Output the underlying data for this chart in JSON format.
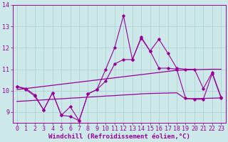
{
  "xlabel": "Windchill (Refroidissement éolien,°C)",
  "x": [
    0,
    1,
    2,
    3,
    4,
    5,
    6,
    7,
    8,
    9,
    10,
    11,
    12,
    13,
    14,
    15,
    16,
    17,
    18,
    19,
    20,
    21,
    22,
    23
  ],
  "line1": [
    10.2,
    10.1,
    9.8,
    9.1,
    9.9,
    8.85,
    8.8,
    8.6,
    9.85,
    10.05,
    11.0,
    12.0,
    13.5,
    11.45,
    12.5,
    11.85,
    12.4,
    11.75,
    11.05,
    11.0,
    11.0,
    10.1,
    10.85,
    9.7
  ],
  "line2": [
    10.2,
    10.05,
    9.75,
    9.1,
    9.9,
    8.85,
    9.25,
    8.6,
    9.85,
    10.05,
    10.45,
    11.25,
    11.45,
    11.45,
    12.45,
    11.85,
    11.05,
    11.05,
    11.0,
    9.65,
    9.6,
    9.6,
    10.8,
    9.65
  ],
  "line3": [
    10.05,
    10.1,
    10.15,
    10.2,
    10.25,
    10.3,
    10.35,
    10.4,
    10.45,
    10.5,
    10.55,
    10.6,
    10.65,
    10.7,
    10.75,
    10.8,
    10.85,
    10.9,
    10.95,
    10.97,
    10.98,
    10.99,
    11.0,
    11.0
  ],
  "line4": [
    9.5,
    9.52,
    9.55,
    9.57,
    9.6,
    9.62,
    9.65,
    9.67,
    9.7,
    9.72,
    9.75,
    9.77,
    9.8,
    9.82,
    9.85,
    9.87,
    9.88,
    9.89,
    9.9,
    9.62,
    9.63,
    9.64,
    9.65,
    9.66
  ],
  "line_color": "#990099",
  "bg_color": "#cce8e8",
  "grid_color": "#aacece",
  "ylim": [
    8.5,
    14.0
  ],
  "yticks": [
    9,
    10,
    11,
    12,
    13,
    14
  ],
  "xticks": [
    0,
    1,
    2,
    3,
    4,
    5,
    6,
    7,
    8,
    9,
    10,
    11,
    12,
    13,
    14,
    15,
    16,
    17,
    18,
    19,
    20,
    21,
    22,
    23
  ],
  "tick_fontsize": 6,
  "label_fontsize": 6.5
}
